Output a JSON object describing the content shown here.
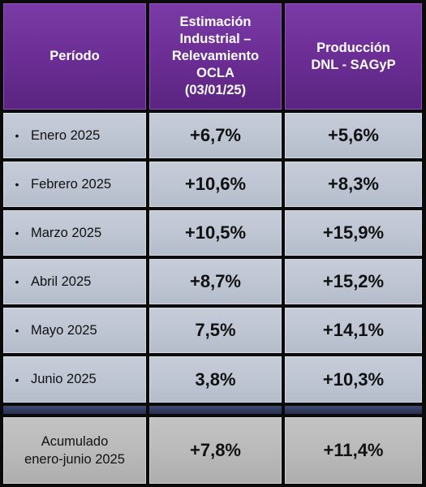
{
  "chart_data": {
    "type": "table",
    "columns": [
      "Período",
      "Estimación Industrial – Relevamiento OCLA (03/01/25)",
      "Producción DNL - SAGyP"
    ],
    "header_lines": {
      "col1": [
        "Estimación",
        "Industrial –",
        "Relevamiento",
        "OCLA",
        "(03/01/25)"
      ],
      "col2": [
        "Producción",
        "DNL - SAGyP"
      ]
    },
    "rows": [
      {
        "bullet": "•",
        "periodo": "Enero 2025",
        "ocla": "+6,7%",
        "sagyp": "+5,6%",
        "ocla_value": 6.7,
        "sagyp_value": 5.6
      },
      {
        "bullet": "•",
        "periodo": "Febrero 2025",
        "ocla": "+10,6%",
        "sagyp": "+8,3%",
        "ocla_value": 10.6,
        "sagyp_value": 8.3
      },
      {
        "bullet": "•",
        "periodo": "Marzo 2025",
        "ocla": "+10,5%",
        "sagyp": "+15,9%",
        "ocla_value": 10.5,
        "sagyp_value": 15.9
      },
      {
        "bullet": "•",
        "periodo": "Abril 2025",
        "ocla": "+8,7%",
        "sagyp": "+15,2%",
        "ocla_value": 8.7,
        "sagyp_value": 15.2
      },
      {
        "bullet": "•",
        "periodo": "Mayo 2025",
        "ocla": "7,5%",
        "sagyp": "+14,1%",
        "ocla_value": 7.5,
        "sagyp_value": 14.1
      },
      {
        "bullet": "•",
        "periodo": "Junio 2025",
        "ocla": "3,8%",
        "sagyp": "+10,3%",
        "ocla_value": 3.8,
        "sagyp_value": 10.3
      }
    ],
    "total": {
      "label_lines": [
        "Acumulado",
        "enero-junio 2025"
      ],
      "ocla": "+7,8%",
      "sagyp": "+11,4%",
      "ocla_value": 7.8,
      "sagyp_value": 11.4
    }
  },
  "colors": {
    "header_purple": "#6a2d93",
    "row_grey_blue": "#bfc6d3",
    "separator_navy": "#27304f",
    "total_grey": "#b9b9b9",
    "border": "#0a0a0a"
  }
}
